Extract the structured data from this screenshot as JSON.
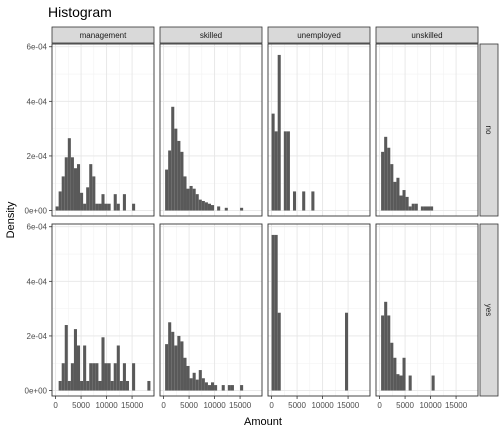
{
  "chart_data": {
    "type": "bar",
    "title": "Histogram",
    "xlabel": "Amount",
    "ylabel": "Density",
    "facet_cols": [
      "management",
      "skilled",
      "unemployed",
      "unskilled"
    ],
    "facet_rows": [
      "no",
      "yes"
    ],
    "x_ticks": [
      0,
      5000,
      10000,
      15000
    ],
    "x_tick_labels": [
      "0",
      "5000",
      "10000",
      "15000"
    ],
    "xlim": [
      -700,
      19300
    ],
    "y_ticks": [
      0,
      0.0002,
      0.0004,
      0.0006
    ],
    "y_tick_labels": [
      "0e+00",
      "2e-04",
      "4e-04",
      "6e-04"
    ],
    "ylim": [
      -2e-05,
      0.00061
    ],
    "grid": true,
    "bar_color": "#595959",
    "panels": [
      {
        "col": "management",
        "row": "no",
        "bins": [
          {
            "x": 0,
            "x_end": 600,
            "y": 1.5e-05
          },
          {
            "x": 600,
            "x_end": 1200,
            "y": 7e-05
          },
          {
            "x": 1200,
            "x_end": 1800,
            "y": 0.000125
          },
          {
            "x": 1800,
            "x_end": 2400,
            "y": 0.000195
          },
          {
            "x": 2400,
            "x_end": 3000,
            "y": 0.000265
          },
          {
            "x": 3000,
            "x_end": 3600,
            "y": 0.000195
          },
          {
            "x": 3600,
            "x_end": 4200,
            "y": 0.000155
          },
          {
            "x": 4200,
            "x_end": 4800,
            "y": 0.00017
          },
          {
            "x": 4800,
            "x_end": 5400,
            "y": 6.5e-05
          },
          {
            "x": 5400,
            "x_end": 6000,
            "y": 2.5e-05
          },
          {
            "x": 6000,
            "x_end": 6600,
            "y": 8.5e-05
          },
          {
            "x": 6600,
            "x_end": 7200,
            "y": 0.00017
          },
          {
            "x": 7200,
            "x_end": 7800,
            "y": 0.000125
          },
          {
            "x": 7800,
            "x_end": 8400,
            "y": 2.5e-05
          },
          {
            "x": 8400,
            "x_end": 9000,
            "y": 2.5e-05
          },
          {
            "x": 9000,
            "x_end": 9600,
            "y": 6e-05
          },
          {
            "x": 9600,
            "x_end": 10200,
            "y": 2.5e-05
          },
          {
            "x": 10200,
            "x_end": 10800,
            "y": 2.5e-05
          },
          {
            "x": 11400,
            "x_end": 12000,
            "y": 6e-05
          },
          {
            "x": 12000,
            "x_end": 12600,
            "y": 2.5e-05
          },
          {
            "x": 13200,
            "x_end": 13800,
            "y": 6e-05
          },
          {
            "x": 15000,
            "x_end": 15600,
            "y": 2.5e-05
          }
        ]
      },
      {
        "col": "skilled",
        "row": "no",
        "bins": [
          {
            "x": 300,
            "x_end": 900,
            "y": 0.00015
          },
          {
            "x": 900,
            "x_end": 1500,
            "y": 0.00022
          },
          {
            "x": 1500,
            "x_end": 2100,
            "y": 0.00038
          },
          {
            "x": 2100,
            "x_end": 2700,
            "y": 0.0003
          },
          {
            "x": 2700,
            "x_end": 3300,
            "y": 0.000255
          },
          {
            "x": 3300,
            "x_end": 3900,
            "y": 0.000215
          },
          {
            "x": 3900,
            "x_end": 4500,
            "y": 0.000125
          },
          {
            "x": 4500,
            "x_end": 5100,
            "y": 8e-05
          },
          {
            "x": 5100,
            "x_end": 5700,
            "y": 9e-05
          },
          {
            "x": 5700,
            "x_end": 6300,
            "y": 8e-05
          },
          {
            "x": 6300,
            "x_end": 6900,
            "y": 6e-05
          },
          {
            "x": 6900,
            "x_end": 7500,
            "y": 4e-05
          },
          {
            "x": 7500,
            "x_end": 8100,
            "y": 3.5e-05
          },
          {
            "x": 8100,
            "x_end": 8700,
            "y": 3e-05
          },
          {
            "x": 8700,
            "x_end": 9300,
            "y": 2.5e-05
          },
          {
            "x": 9300,
            "x_end": 9900,
            "y": 2e-05
          },
          {
            "x": 10500,
            "x_end": 11100,
            "y": 1.5e-05
          },
          {
            "x": 12000,
            "x_end": 12600,
            "y": 1e-05
          },
          {
            "x": 15000,
            "x_end": 15600,
            "y": 1e-05
          }
        ]
      },
      {
        "col": "unemployed",
        "row": "no",
        "bins": [
          {
            "x": 0,
            "x_end": 600,
            "y": 0.000355
          },
          {
            "x": 600,
            "x_end": 1200,
            "y": 0.00029
          },
          {
            "x": 1200,
            "x_end": 1800,
            "y": 0.00057
          },
          {
            "x": 2400,
            "x_end": 3000,
            "y": 0.00029
          },
          {
            "x": 3000,
            "x_end": 3600,
            "y": 0.00029
          },
          {
            "x": 4200,
            "x_end": 4800,
            "y": 7e-05
          },
          {
            "x": 6000,
            "x_end": 6600,
            "y": 7e-05
          },
          {
            "x": 7800,
            "x_end": 8400,
            "y": 7e-05
          }
        ]
      },
      {
        "col": "unskilled",
        "row": "no",
        "bins": [
          {
            "x": 300,
            "x_end": 900,
            "y": 0.000215
          },
          {
            "x": 900,
            "x_end": 1500,
            "y": 0.00027
          },
          {
            "x": 1500,
            "x_end": 2100,
            "y": 0.00023
          },
          {
            "x": 2100,
            "x_end": 2700,
            "y": 0.00017
          },
          {
            "x": 2700,
            "x_end": 3300,
            "y": 0.000105
          },
          {
            "x": 3300,
            "x_end": 3900,
            "y": 0.00012
          },
          {
            "x": 3900,
            "x_end": 4500,
            "y": 5.5e-05
          },
          {
            "x": 4500,
            "x_end": 5100,
            "y": 7.5e-05
          },
          {
            "x": 5100,
            "x_end": 5700,
            "y": 5e-05
          },
          {
            "x": 5700,
            "x_end": 6300,
            "y": 1.5e-05
          },
          {
            "x": 6300,
            "x_end": 6900,
            "y": 2.5e-05
          },
          {
            "x": 6900,
            "x_end": 7500,
            "y": 2.5e-05
          },
          {
            "x": 8100,
            "x_end": 8700,
            "y": 1.5e-05
          },
          {
            "x": 8700,
            "x_end": 9300,
            "y": 1.5e-05
          },
          {
            "x": 9300,
            "x_end": 9900,
            "y": 1.5e-05
          },
          {
            "x": 9900,
            "x_end": 10500,
            "y": 1.5e-05
          }
        ]
      },
      {
        "col": "management",
        "row": "yes",
        "bins": [
          {
            "x": 600,
            "x_end": 1200,
            "y": 3.5e-05
          },
          {
            "x": 1200,
            "x_end": 1800,
            "y": 0.0001
          },
          {
            "x": 1800,
            "x_end": 2400,
            "y": 0.00024
          },
          {
            "x": 2400,
            "x_end": 3000,
            "y": 3.5e-05
          },
          {
            "x": 3000,
            "x_end": 3600,
            "y": 0.0001
          },
          {
            "x": 3600,
            "x_end": 4200,
            "y": 0.000225
          },
          {
            "x": 4200,
            "x_end": 4800,
            "y": 0.000165
          },
          {
            "x": 4800,
            "x_end": 5400,
            "y": 3.5e-05
          },
          {
            "x": 5400,
            "x_end": 6000,
            "y": 0.000165
          },
          {
            "x": 6000,
            "x_end": 6600,
            "y": 3.5e-05
          },
          {
            "x": 6600,
            "x_end": 7200,
            "y": 0.0001
          },
          {
            "x": 7200,
            "x_end": 7800,
            "y": 0.0001
          },
          {
            "x": 7800,
            "x_end": 8400,
            "y": 0.0001
          },
          {
            "x": 8400,
            "x_end": 9000,
            "y": 3.5e-05
          },
          {
            "x": 9000,
            "x_end": 9600,
            "y": 0.000195
          },
          {
            "x": 9600,
            "x_end": 10200,
            "y": 0.0001
          },
          {
            "x": 10200,
            "x_end": 10800,
            "y": 0.0001
          },
          {
            "x": 10800,
            "x_end": 11400,
            "y": 3.5e-05
          },
          {
            "x": 11400,
            "x_end": 12000,
            "y": 0.0001
          },
          {
            "x": 12000,
            "x_end": 12600,
            "y": 0.000165
          },
          {
            "x": 12600,
            "x_end": 13200,
            "y": 3.5e-05
          },
          {
            "x": 13200,
            "x_end": 13800,
            "y": 0.0001
          },
          {
            "x": 13800,
            "x_end": 14400,
            "y": 3.5e-05
          },
          {
            "x": 15000,
            "x_end": 15600,
            "y": 0.0001
          },
          {
            "x": 18000,
            "x_end": 18600,
            "y": 3.5e-05
          }
        ]
      },
      {
        "col": "skilled",
        "row": "yes",
        "bins": [
          {
            "x": 300,
            "x_end": 900,
            "y": 0.00017
          },
          {
            "x": 900,
            "x_end": 1500,
            "y": 0.00025
          },
          {
            "x": 1500,
            "x_end": 2100,
            "y": 0.000215
          },
          {
            "x": 2100,
            "x_end": 2700,
            "y": 0.000165
          },
          {
            "x": 2700,
            "x_end": 3300,
            "y": 0.0002
          },
          {
            "x": 3300,
            "x_end": 3900,
            "y": 0.00018
          },
          {
            "x": 3900,
            "x_end": 4500,
            "y": 0.00012
          },
          {
            "x": 4500,
            "x_end": 5100,
            "y": 9e-05
          },
          {
            "x": 5100,
            "x_end": 5700,
            "y": 4.5e-05
          },
          {
            "x": 5700,
            "x_end": 6300,
            "y": 6.5e-05
          },
          {
            "x": 6300,
            "x_end": 6900,
            "y": 4e-05
          },
          {
            "x": 6900,
            "x_end": 7500,
            "y": 7.5e-05
          },
          {
            "x": 7500,
            "x_end": 8100,
            "y": 4.5e-05
          },
          {
            "x": 8100,
            "x_end": 8700,
            "y": 3e-05
          },
          {
            "x": 8700,
            "x_end": 9300,
            "y": 2e-05
          },
          {
            "x": 9300,
            "x_end": 9900,
            "y": 3e-05
          },
          {
            "x": 9900,
            "x_end": 10500,
            "y": 2e-05
          },
          {
            "x": 11400,
            "x_end": 12000,
            "y": 2e-05
          },
          {
            "x": 12600,
            "x_end": 13200,
            "y": 2e-05
          },
          {
            "x": 13200,
            "x_end": 13800,
            "y": 2e-05
          },
          {
            "x": 15000,
            "x_end": 15600,
            "y": 2e-05
          }
        ]
      },
      {
        "col": "unemployed",
        "row": "yes",
        "bins": [
          {
            "x": 0,
            "x_end": 600,
            "y": 0.00057
          },
          {
            "x": 600,
            "x_end": 1200,
            "y": 0.00057
          },
          {
            "x": 1200,
            "x_end": 1800,
            "y": 0.000285
          },
          {
            "x": 14400,
            "x_end": 15000,
            "y": 0.000285
          }
        ]
      },
      {
        "col": "unskilled",
        "row": "yes",
        "bins": [
          {
            "x": 300,
            "x_end": 900,
            "y": 0.000275
          },
          {
            "x": 900,
            "x_end": 1500,
            "y": 0.000325
          },
          {
            "x": 1500,
            "x_end": 2100,
            "y": 0.000275
          },
          {
            "x": 2100,
            "x_end": 2700,
            "y": 0.000175
          },
          {
            "x": 2700,
            "x_end": 3300,
            "y": 0.00012
          },
          {
            "x": 3300,
            "x_end": 3900,
            "y": 6e-05
          },
          {
            "x": 3900,
            "x_end": 4500,
            "y": 5.5e-05
          },
          {
            "x": 4500,
            "x_end": 5100,
            "y": 0.00012
          },
          {
            "x": 5700,
            "x_end": 6300,
            "y": 5.5e-05
          },
          {
            "x": 10200,
            "x_end": 10800,
            "y": 5.5e-05
          }
        ]
      }
    ]
  }
}
